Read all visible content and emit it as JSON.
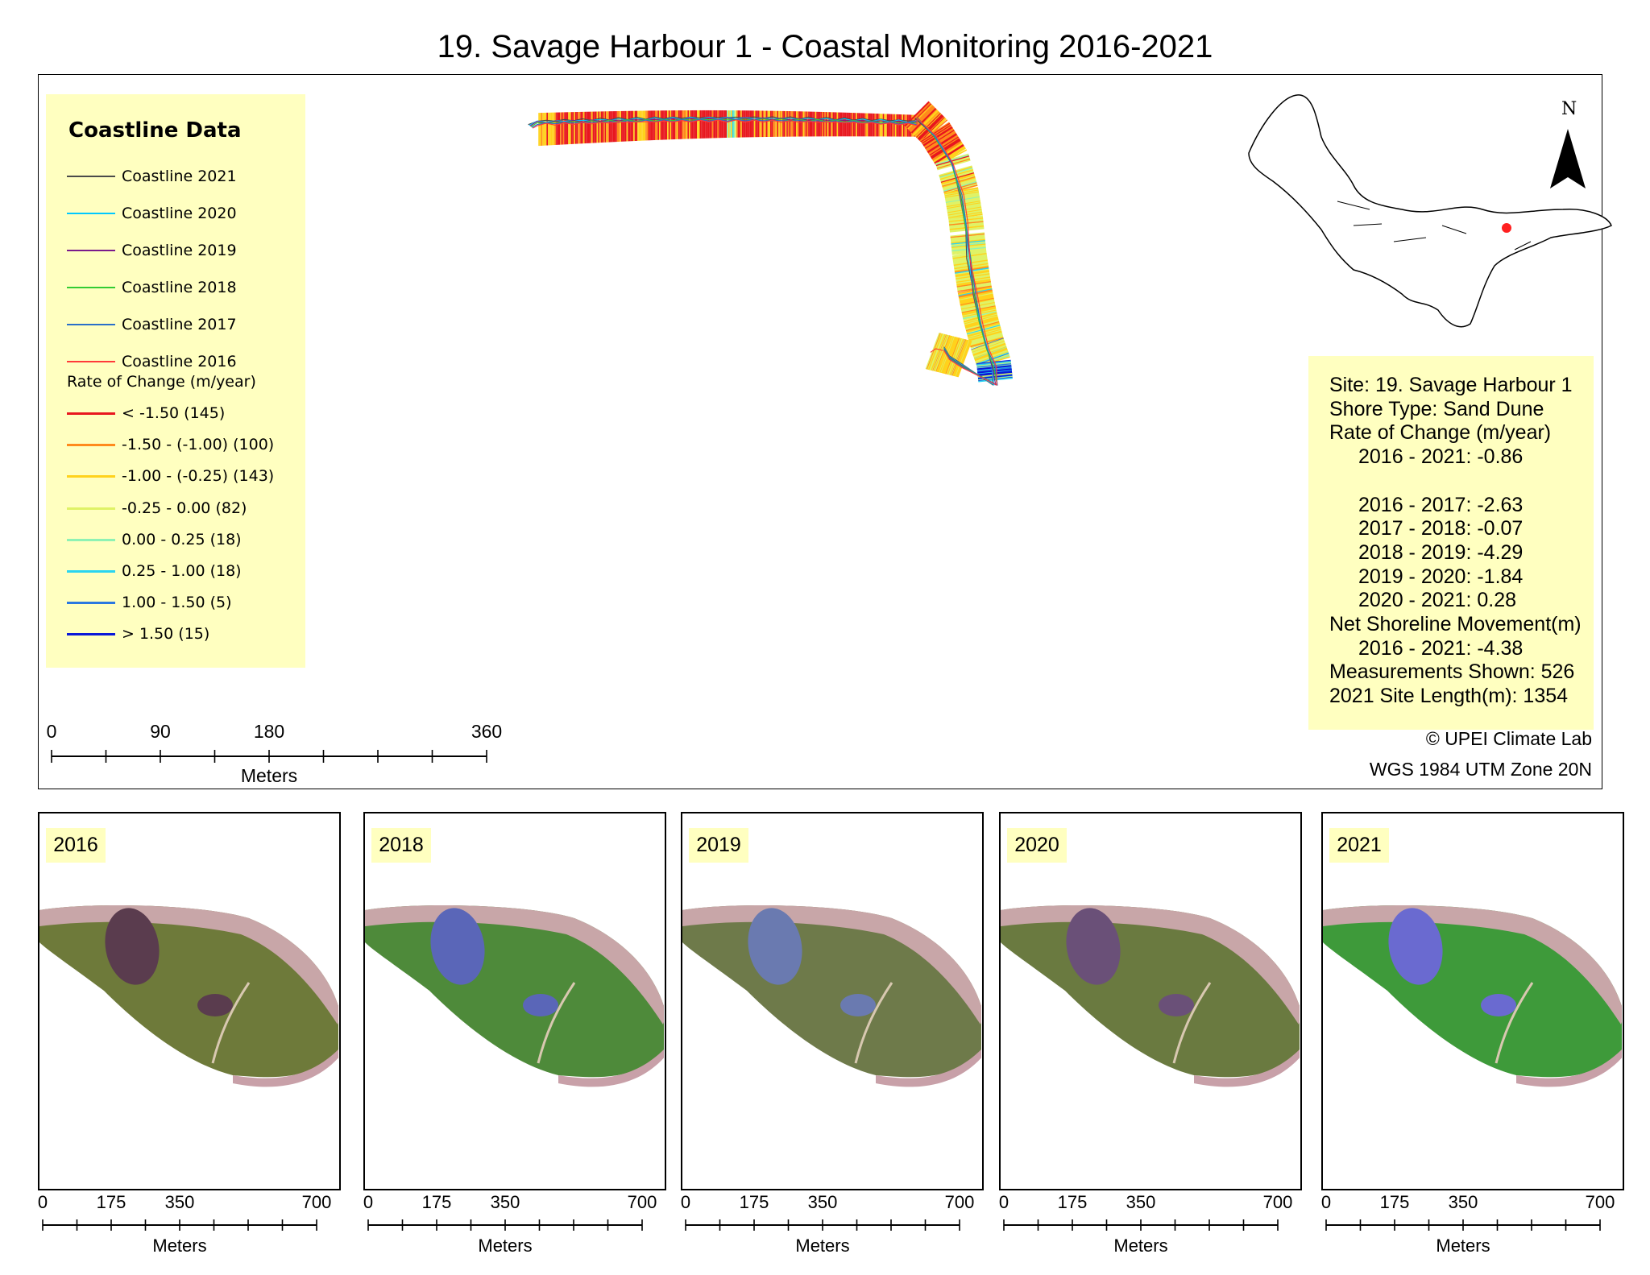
{
  "title": "19. Savage Harbour 1 - Coastal Monitoring 2016-2021",
  "legend": {
    "title": "Coastline Data",
    "coastlines": [
      {
        "label": "Coastline 2021",
        "color": "#4a4a4a"
      },
      {
        "label": "Coastline 2020",
        "color": "#00c8ff"
      },
      {
        "label": "Coastline 2019",
        "color": "#7a1a8c"
      },
      {
        "label": "Coastline 2018",
        "color": "#33cc33"
      },
      {
        "label": "Coastline 2017",
        "color": "#2a6fc9"
      },
      {
        "label": "Coastline 2016",
        "color": "#ff3a3a"
      }
    ],
    "rate_heading": "Rate of Change (m/year)",
    "rates": [
      {
        "label": "< -1.50 (145)",
        "color": "#e8171e"
      },
      {
        "label": "-1.50 - (-1.00) (100)",
        "color": "#ff8a1c"
      },
      {
        "label": "-1.00 - (-0.25) (143)",
        "color": "#ffd21c"
      },
      {
        "label": "-0.25 - 0.00 (82)",
        "color": "#dff266"
      },
      {
        "label": "0.00 - 0.25 (18)",
        "color": "#8ef2b4"
      },
      {
        "label": "0.25 - 1.00 (18)",
        "color": "#2ad4f0"
      },
      {
        "label": "1.00 - 1.50 (5)",
        "color": "#2a78e0"
      },
      {
        "label": "> 1.50 (15)",
        "color": "#0a18d8"
      }
    ]
  },
  "info": {
    "lines": [
      {
        "text": "Site: 19. Savage Harbour 1",
        "indent": false
      },
      {
        "text": "Shore Type: Sand Dune",
        "indent": false
      },
      {
        "text": "Rate of Change (m/year)",
        "indent": false
      },
      {
        "text": "2016 - 2021: -0.86",
        "indent": true
      },
      {
        "text": "",
        "indent": true
      },
      {
        "text": "2016 - 2017: -2.63",
        "indent": true
      },
      {
        "text": "2017 - 2018: -0.07",
        "indent": true
      },
      {
        "text": "2018 - 2019: -4.29",
        "indent": true
      },
      {
        "text": "2019 - 2020: -1.84",
        "indent": true
      },
      {
        "text": "2020 - 2021: 0.28",
        "indent": true
      },
      {
        "text": "Net Shoreline Movement(m)",
        "indent": false
      },
      {
        "text": "2016 - 2021: -4.38",
        "indent": true
      },
      {
        "text": "Measurements Shown: 526",
        "indent": false
      },
      {
        "text": "2021 Site Length(m): 1354",
        "indent": false
      }
    ]
  },
  "credit": "© UPEI Climate Lab",
  "projection": "WGS 1984 UTM Zone 20N",
  "north_label": "N",
  "main_scale": {
    "ticks": [
      "0",
      "90",
      "180",
      "360"
    ],
    "unit": "Meters"
  },
  "panels": [
    {
      "year": "2016",
      "tint": "#5a3c4e",
      "land": "#6e7a3a"
    },
    {
      "year": "2018",
      "tint": "#5a66b8",
      "land": "#4e8a3a"
    },
    {
      "year": "2019",
      "tint": "#6a7ab0",
      "land": "#6e7a4a"
    },
    {
      "year": "2020",
      "tint": "#6a5078",
      "land": "#6a7a40"
    },
    {
      "year": "2021",
      "tint": "#6a6ad0",
      "land": "#3e9a3a"
    }
  ],
  "panel_scale": {
    "ticks": [
      "0",
      "175",
      "350",
      "700"
    ],
    "unit": "Meters"
  }
}
